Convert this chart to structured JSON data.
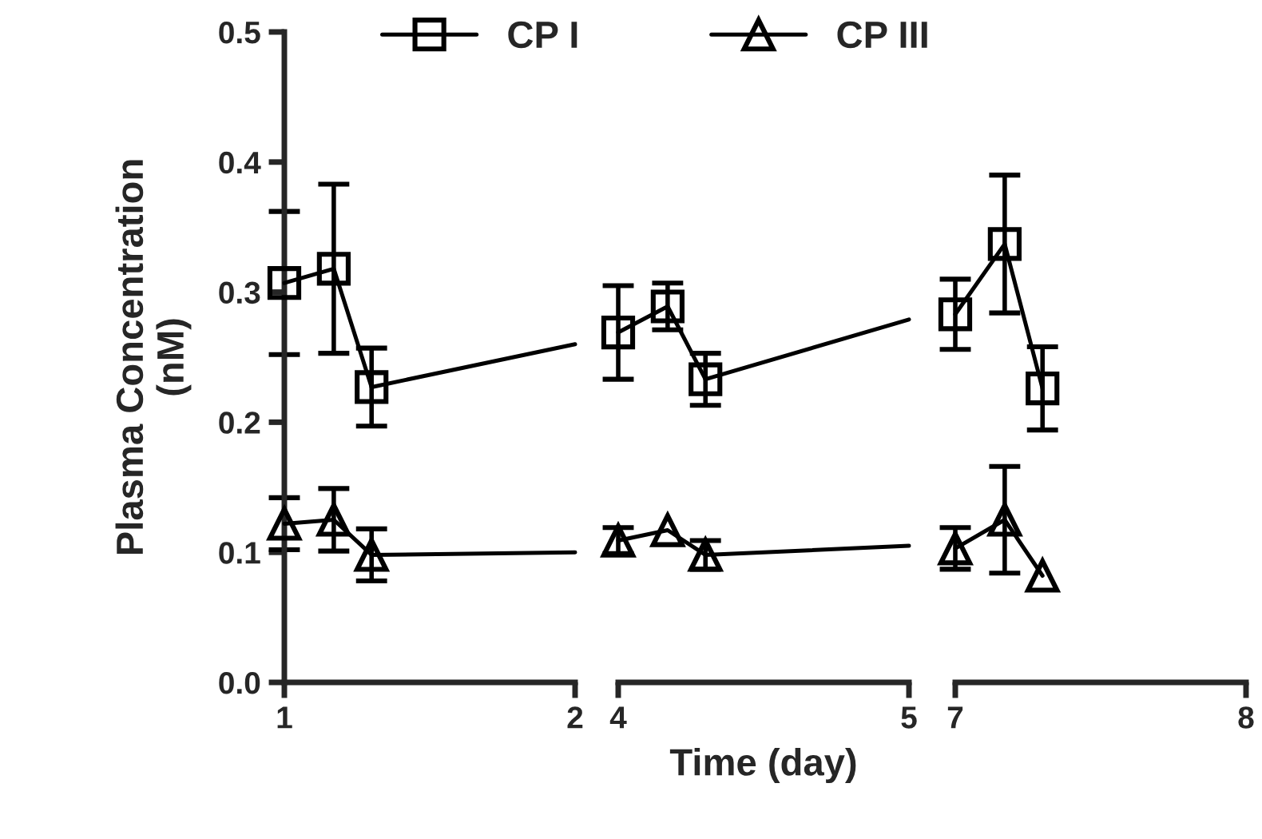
{
  "chart_data": [
    {
      "type": "line",
      "ylabel": "Plasma Concentration\n(nM)",
      "x": [
        1.0,
        1.17,
        1.3
      ],
      "xlim": [
        1,
        2
      ],
      "xticks": [
        1,
        2
      ],
      "ylim": [
        0,
        0.5
      ],
      "yticks": [
        {
          "value": 0,
          "label": "0.0"
        },
        {
          "value": 0.1,
          "label": "0.1"
        },
        {
          "value": 0.2,
          "label": "0.2"
        },
        {
          "value": 0.3,
          "label": "0.3"
        },
        {
          "value": 0.4,
          "label": "0.4"
        },
        {
          "value": 0.5,
          "label": "0.5"
        }
      ],
      "legend": "top",
      "grid": false,
      "series": [
        {
          "name": "CP I",
          "color": "#000000",
          "marker": "square",
          "values": [
            0.307,
            0.318,
            0.227
          ],
          "errors": [
            0.055,
            0.065,
            0.03
          ]
        },
        {
          "name": "CP III",
          "color": "#000000",
          "marker": "triangle",
          "values": [
            0.122,
            0.125,
            0.098
          ],
          "errors": [
            0.02,
            0.024,
            0.02
          ]
        },
        {
          "type": "line",
          "color": "#000000",
          "marker": "none",
          "x": [
            1.3,
            2.0
          ],
          "values": [
            0.227,
            0.26
          ]
        },
        {
          "type": "line",
          "color": "#000000",
          "marker": "none",
          "x": [
            1.3,
            2.0
          ],
          "values": [
            0.098,
            0.1
          ]
        }
      ]
    },
    {
      "type": "line",
      "xlabel": "Time (day)",
      "x": [
        4.0,
        4.17,
        4.3
      ],
      "xlim": [
        4,
        5
      ],
      "xticks": [
        4,
        5
      ],
      "ylim": [
        0,
        0.5
      ],
      "tick_labels": "x",
      "grid": false,
      "series": [
        {
          "color": "#000000",
          "marker": "square",
          "values": [
            0.269,
            0.289,
            0.233
          ],
          "errors": [
            0.036,
            0.018,
            0.02
          ]
        },
        {
          "color": "#000000",
          "marker": "triangle",
          "values": [
            0.109,
            0.117,
            0.098
          ],
          "errors": [
            0.01,
            null,
            0.011
          ]
        },
        {
          "type": "line",
          "color": "#000000",
          "marker": "none",
          "x": [
            4.3,
            5.0
          ],
          "values": [
            0.233,
            0.279
          ]
        },
        {
          "type": "line",
          "color": "#000000",
          "marker": "none",
          "x": [
            4.3,
            5.0
          ],
          "values": [
            0.098,
            0.105
          ]
        }
      ]
    },
    {
      "type": "line",
      "x": [
        7.0,
        7.17,
        7.3
      ],
      "xlim": [
        7,
        8
      ],
      "xticks": [
        7,
        8
      ],
      "ylim": [
        0,
        0.5
      ],
      "tick_labels": "x",
      "grid": false,
      "series": [
        {
          "color": "#000000",
          "marker": "square",
          "values": [
            0.283,
            0.337,
            0.226
          ],
          "errors": [
            0.027,
            0.053,
            0.032
          ]
        },
        {
          "color": "#000000",
          "marker": "triangle",
          "values": [
            0.103,
            0.125,
            0.082
          ],
          "errors": [
            0.016,
            0.041,
            null
          ]
        }
      ]
    }
  ]
}
